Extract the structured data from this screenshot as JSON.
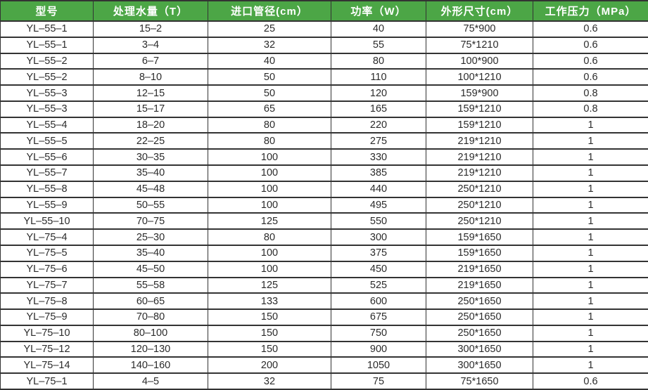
{
  "table": {
    "columns": [
      "型号",
      "处理水量（T）",
      "进口管径(cm）",
      "功率（W）",
      "外形尺寸(cm）",
      "工作压力（MPa）"
    ],
    "rows": [
      [
        "YL–55–1",
        "15–2",
        "25",
        "40",
        "75*900",
        "0.6"
      ],
      [
        "YL–55–1",
        "3–4",
        "32",
        "55",
        "75*1210",
        "0.6"
      ],
      [
        "YL–55–2",
        "6–7",
        "40",
        "80",
        "100*900",
        "0.6"
      ],
      [
        "YL–55–2",
        "8–10",
        "50",
        "110",
        "100*1210",
        "0.6"
      ],
      [
        "YL–55–3",
        "12–15",
        "50",
        "120",
        "159*900",
        "0.8"
      ],
      [
        "YL–55–3",
        "15–17",
        "65",
        "165",
        "159*1210",
        "0.8"
      ],
      [
        "YL–55–4",
        "18–20",
        "80",
        "220",
        "159*1210",
        "1"
      ],
      [
        "YL–55–5",
        "22–25",
        "80",
        "275",
        "219*1210",
        "1"
      ],
      [
        "YL–55–6",
        "30–35",
        "100",
        "330",
        "219*1210",
        "1"
      ],
      [
        "YL–55–7",
        "35–40",
        "100",
        "385",
        "219*1210",
        "1"
      ],
      [
        "YL–55–8",
        "45–48",
        "100",
        "440",
        "250*1210",
        "1"
      ],
      [
        "YL–55–9",
        "50–55",
        "100",
        "495",
        "250*1210",
        "1"
      ],
      [
        "YL–55–10",
        "70–75",
        "125",
        "550",
        "250*1210",
        "1"
      ],
      [
        "YL–75–4",
        "25–30",
        "80",
        "300",
        "159*1650",
        "1"
      ],
      [
        "YL–75–5",
        "35–40",
        "100",
        "375",
        "159*1650",
        "1"
      ],
      [
        "YL–75–6",
        "45–50",
        "100",
        "450",
        "219*1650",
        "1"
      ],
      [
        "YL–75–7",
        "55–58",
        "125",
        "525",
        "219*1650",
        "1"
      ],
      [
        "YL–75–8",
        "60–65",
        "133",
        "600",
        "250*1650",
        "1"
      ],
      [
        "YL–75–9",
        "70–80",
        "150",
        "675",
        "250*1650",
        "1"
      ],
      [
        "YL–75–10",
        "80–100",
        "150",
        "750",
        "250*1650",
        "1"
      ],
      [
        "YL–75–12",
        "120–130",
        "150",
        "900",
        "300*1650",
        "1"
      ],
      [
        "YL–75–14",
        "140–160",
        "200",
        "1050",
        "300*1650",
        "1"
      ],
      [
        "YL–75–1",
        "4–5",
        "32",
        "75",
        "75*1650",
        "0.6"
      ]
    ]
  },
  "colors": {
    "header_bg": "#4CA646",
    "header_text": "#FFFFFF",
    "border": "#333333",
    "body_text": "#2B2B2B",
    "body_bg": "#FFFFFF"
  }
}
